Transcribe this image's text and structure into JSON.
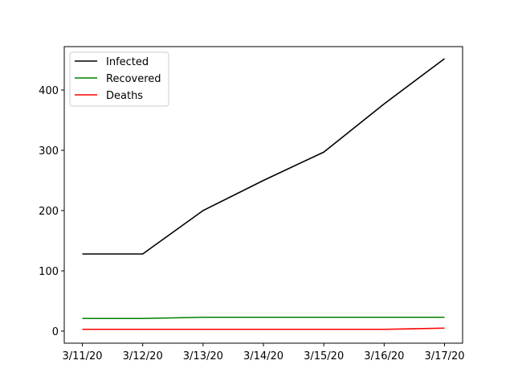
{
  "chart_data": {
    "type": "line",
    "title": "",
    "xlabel": "",
    "ylabel": "",
    "categories": [
      "3/11/20",
      "3/12/20",
      "3/13/20",
      "3/14/20",
      "3/15/20",
      "3/16/20",
      "3/17/20"
    ],
    "ylim": [
      -20,
      472
    ],
    "yticks": [
      0,
      100,
      200,
      300,
      400
    ],
    "grid": false,
    "legend_position": "top-left",
    "series": [
      {
        "name": "Infected",
        "color": "#000000",
        "values": [
          128,
          128,
          200,
          250,
          297,
          377,
          452
        ]
      },
      {
        "name": "Recovered",
        "color": "#008000",
        "values": [
          21,
          21,
          23,
          23,
          23,
          23,
          23
        ]
      },
      {
        "name": "Deaths",
        "color": "#ff0000",
        "values": [
          3,
          3,
          3,
          3,
          3,
          3,
          5
        ]
      }
    ]
  }
}
